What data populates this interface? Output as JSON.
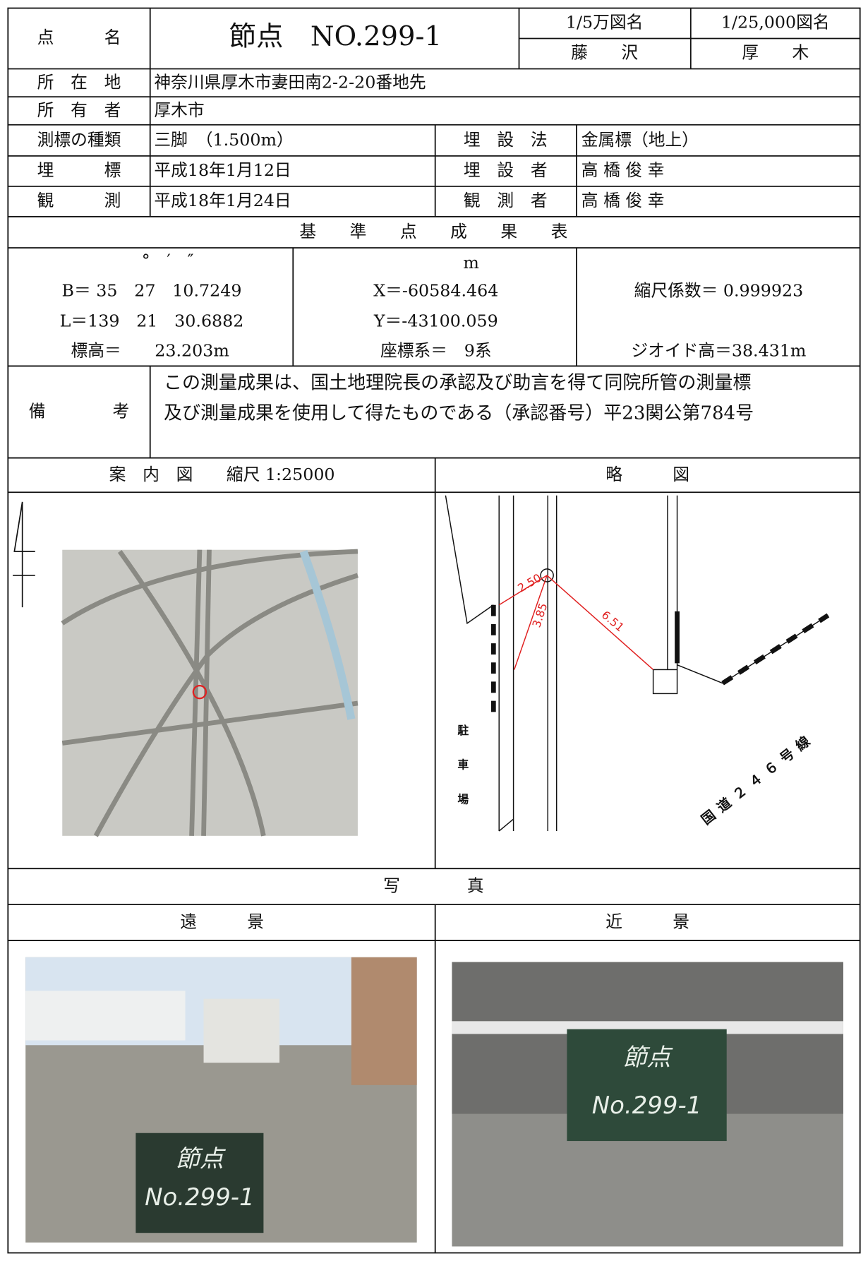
{
  "header": {
    "point_label": "点　　　名",
    "point_name": "節点　NO.299-1",
    "map50k_label": "1/5万図名",
    "map50k_value": "藤　　沢",
    "map25k_label": "1/25,000図名",
    "map25k_value": "厚　　木"
  },
  "info": {
    "location_label": "所　在　地",
    "location": "神奈川県厚木市妻田南2-2-20番地先",
    "owner_label": "所　有　者",
    "owner": "厚木市",
    "marker_type_label": "測標の種類",
    "marker_type": "三脚　（1.500m）",
    "burial_method_label": "埋　設　法",
    "burial_method": "金属標（地上）",
    "burial_label": "埋　　　標",
    "burial_date": "平成18年1月12日",
    "buried_by_label": "埋　設　者",
    "buried_by": "高 橋 俊 幸",
    "survey_label": "観　　　測",
    "survey_date": "平成18年1月24日",
    "surveyor_label": "観　測　者",
    "surveyor": "高 橋 俊 幸"
  },
  "results": {
    "title": "基　　準　　点　　成　　果　　表",
    "angle_units": "°　′　″",
    "B": "B＝ 35　27　10.7249",
    "L": "L＝139　21　30.6882",
    "height": "標高＝　　23.203m",
    "metre_unit": "m",
    "X": "X＝-60584.464",
    "Y": "Y＝-43100.059",
    "system": "座標系＝　9系",
    "scale_factor": "縮尺係数＝ 0.999923",
    "geoid": "ジオイド高＝38.431m"
  },
  "remarks": {
    "label": "備　　　　考",
    "lines": [
      "この測量成果は、国土地理院長の承認及び助言を得て同院所管の測量標",
      "及び測量成果を使用して得たものである（承認番号）平23関公第784号"
    ]
  },
  "maps": {
    "guide_title": "案　内　図　　縮尺 1:25000",
    "sketch_title": "略　　　図",
    "sketch_labels": [
      "2.50",
      "3.85",
      "6.51"
    ],
    "parking": [
      "駐",
      "車",
      "場"
    ],
    "road": "国道２４６号線"
  },
  "photos": {
    "title": "写　　　　真",
    "far_title": "遠　　　景",
    "near_title": "近　　　景",
    "board_line1": "節点",
    "board_line2": "No.299-1"
  }
}
